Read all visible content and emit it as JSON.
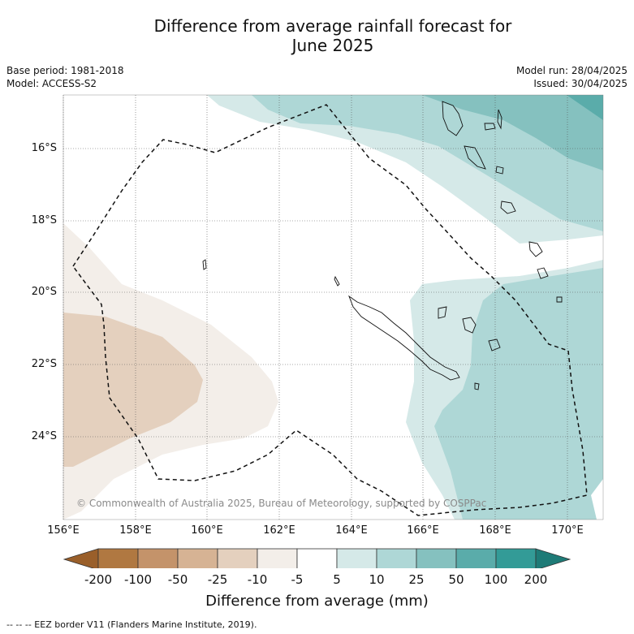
{
  "title_line1": "Difference from average rainfall forecast for",
  "title_line2": "June 2025",
  "base_period": "Base period: 1981-2018",
  "model": "Model: ACCESS-S2",
  "model_run": "Model run: 28/04/2025",
  "issued": "Issued: 30/04/2025",
  "copyright": "© Commonwealth of Australia 2025, Bureau of Meteorology, supported by COSPPac",
  "lat_labels": [
    "16°S",
    "18°S",
    "20°S",
    "22°S",
    "24°S"
  ],
  "lon_labels": [
    "156°E",
    "158°E",
    "160°E",
    "162°E",
    "164°E",
    "166°E",
    "168°E",
    "170°E"
  ],
  "colorbar": {
    "ticks": [
      "-200",
      "-100",
      "-50",
      "-25",
      "-10",
      "-5",
      "5",
      "10",
      "25",
      "50",
      "100",
      "200"
    ],
    "colors": [
      "#9a5f2a",
      "#b07841",
      "#c4936a",
      "#d6b394",
      "#e4d0be",
      "#f3eee9",
      "#ffffff",
      "#d5e9e8",
      "#aed7d6",
      "#85c1bf",
      "#5aacaa",
      "#339b97",
      "#1e7b77"
    ],
    "title": "Difference from average (mm)"
  },
  "footnote": "--  --  -- EEZ border V11 (Flanders Marine Institute, 2019)."
}
